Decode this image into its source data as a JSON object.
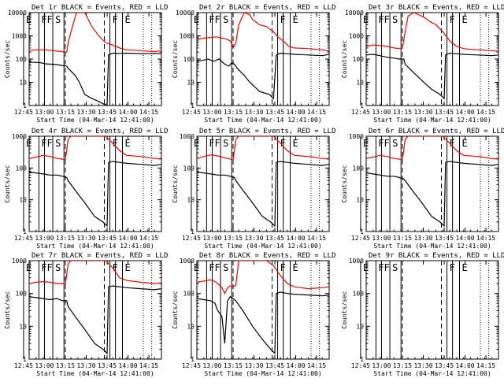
{
  "colors": {
    "events": "#000000",
    "lld": "#ff0000",
    "axes": "#000000",
    "background": "#ffffff"
  },
  "x_labels": [
    "12:45",
    "13:00",
    "13:15",
    "13:30",
    "13:45",
    "14:00",
    "14:15"
  ],
  "x_minutes": [
    -4,
    11,
    26,
    41,
    56,
    71,
    86,
    95
  ],
  "xlabel": "Start Time (04-Mar-14 12:41:00)",
  "ylabel": "Counts/sec",
  "y_tick_labels_small": [
    "1",
    "10",
    "100",
    "1000"
  ],
  "y_tick_labels_big": [
    "1",
    "10",
    "100",
    "1000",
    "10000"
  ],
  "attenuator_letters": [
    "E",
    "F",
    "F",
    "S",
    "F",
    "E"
  ],
  "chart_data": [
    {
      "type": "line",
      "title": "Det 1r BLACK = Events, RED = LLD",
      "xlim": [
        0,
        95
      ],
      "ylim": [
        1,
        10000
      ],
      "yscale": "log",
      "series": [
        {
          "name": "Events",
          "color": "#000000",
          "x": [
            0,
            4,
            8,
            12,
            16,
            20,
            24,
            27,
            28,
            33,
            36,
            40,
            45,
            50,
            53,
            56,
            57,
            60,
            65,
            70,
            80,
            90,
            95
          ],
          "y": [
            75,
            72,
            70,
            62,
            60,
            58,
            52,
            50,
            40,
            20,
            10,
            3,
            2,
            1.5,
            1.2,
            1,
            150,
            180,
            175,
            180,
            170,
            175,
            170
          ]
        },
        {
          "name": "LLD",
          "color": "#ff0000",
          "x": [
            0,
            5,
            10,
            15,
            20,
            23,
            25,
            27,
            28,
            30,
            34,
            40,
            45,
            50,
            55,
            60,
            65,
            70,
            80,
            90,
            95
          ],
          "y": [
            230,
            250,
            250,
            240,
            220,
            210,
            200,
            200,
            500,
            1500,
            10000,
            10000,
            2500,
            1000,
            500,
            400,
            300,
            250,
            230,
            210,
            230
          ]
        }
      ]
    },
    {
      "type": "line",
      "title": "Det 2r BLACK = Events, RED = LLD",
      "xlim": [
        0,
        95
      ],
      "ylim": [
        1,
        10000
      ],
      "yscale": "log",
      "series": [
        {
          "name": "Events",
          "color": "#000000",
          "x": [
            0,
            5,
            8,
            12,
            16,
            20,
            23,
            25,
            27,
            29,
            31,
            34,
            38,
            42,
            45,
            52,
            55,
            57,
            60,
            65,
            70,
            80,
            90,
            95
          ],
          "y": [
            80,
            90,
            100,
            80,
            100,
            60,
            50,
            70,
            60,
            40,
            30,
            20,
            10,
            6,
            4,
            3,
            2,
            150,
            180,
            170,
            160,
            150,
            140,
            160
          ]
        },
        {
          "name": "LLD",
          "color": "#ff0000",
          "x": [
            0,
            5,
            10,
            14,
            18,
            20,
            22,
            24,
            26,
            28,
            30,
            34,
            38,
            40,
            45,
            50,
            55,
            58,
            62,
            66,
            70,
            80,
            90,
            95
          ],
          "y": [
            700,
            800,
            850,
            900,
            800,
            750,
            700,
            600,
            300,
            500,
            3000,
            10000,
            8000,
            5000,
            3000,
            2500,
            1500,
            900,
            600,
            350,
            300,
            280,
            250,
            220
          ]
        }
      ]
    },
    {
      "type": "line",
      "title": "Det 3r BLACK = Events, RED = LLD",
      "xlim": [
        0,
        95
      ],
      "ylim": [
        1,
        10000
      ],
      "yscale": "log",
      "series": [
        {
          "name": "Events",
          "color": "#000000",
          "x": [
            0,
            5,
            10,
            15,
            20,
            24,
            27,
            28,
            33,
            40,
            47,
            53,
            56,
            57,
            60,
            65,
            70,
            80,
            90,
            95
          ],
          "y": [
            150,
            160,
            140,
            120,
            110,
            100,
            100,
            60,
            30,
            12,
            5,
            3,
            2,
            150,
            180,
            170,
            160,
            150,
            140,
            150
          ]
        },
        {
          "name": "LLD",
          "color": "#ff0000",
          "x": [
            0,
            5,
            10,
            15,
            20,
            24,
            26,
            28,
            30,
            34,
            38,
            42,
            46,
            50,
            55,
            60,
            65,
            70,
            80,
            90,
            95
          ],
          "y": [
            350,
            400,
            380,
            350,
            300,
            280,
            300,
            1500,
            7000,
            10000,
            8000,
            6000,
            4000,
            3000,
            1500,
            600,
            350,
            280,
            250,
            230,
            220
          ]
        }
      ]
    },
    {
      "type": "line",
      "title": "Det 4r BLACK = Events, RED = LLD",
      "xlim": [
        0,
        95
      ],
      "ylim": [
        1,
        10000
      ],
      "yscale": "log",
      "series": [
        {
          "name": "Events",
          "color": "#000000",
          "x": [
            0,
            5,
            10,
            15,
            20,
            24,
            27,
            28,
            33,
            40,
            47,
            53,
            56,
            57,
            60,
            65,
            70,
            80,
            90,
            95
          ],
          "y": [
            75,
            70,
            65,
            60,
            60,
            55,
            50,
            40,
            20,
            8,
            3,
            2,
            1.5,
            150,
            160,
            150,
            140,
            130,
            120,
            130
          ]
        },
        {
          "name": "LLD",
          "color": "#ff0000",
          "x": [
            0,
            5,
            10,
            15,
            20,
            24,
            26,
            28,
            30,
            34,
            38,
            42,
            46,
            50,
            55,
            60,
            65,
            70,
            80,
            90,
            95
          ],
          "y": [
            200,
            220,
            250,
            230,
            200,
            190,
            180,
            800,
            5000,
            10000,
            9000,
            7000,
            5000,
            3000,
            1500,
            600,
            350,
            250,
            230,
            200,
            190
          ]
        }
      ]
    },
    {
      "type": "line",
      "title": "Det 5r BLACK = Events, RED = LLD",
      "xlim": [
        0,
        95
      ],
      "ylim": [
        1,
        10000
      ],
      "yscale": "log",
      "series": [
        {
          "name": "Events",
          "color": "#000000",
          "x": [
            0,
            5,
            10,
            15,
            20,
            24,
            27,
            28,
            33,
            40,
            47,
            53,
            56,
            57,
            60,
            65,
            70,
            80,
            90,
            95
          ],
          "y": [
            75,
            70,
            65,
            60,
            60,
            55,
            50,
            40,
            20,
            8,
            3,
            2,
            1.5,
            150,
            160,
            150,
            140,
            130,
            120,
            130
          ]
        },
        {
          "name": "LLD",
          "color": "#ff0000",
          "x": [
            0,
            5,
            10,
            15,
            20,
            24,
            26,
            28,
            30,
            34,
            38,
            42,
            46,
            50,
            55,
            60,
            65,
            70,
            80,
            90,
            95
          ],
          "y": [
            200,
            230,
            260,
            240,
            210,
            190,
            180,
            800,
            5000,
            10000,
            9000,
            7000,
            5000,
            3000,
            1500,
            600,
            350,
            250,
            230,
            200,
            190
          ]
        }
      ]
    },
    {
      "type": "line",
      "title": "Det 6r BLACK = Events, RED = LLD",
      "xlim": [
        0,
        95
      ],
      "ylim": [
        1,
        10000
      ],
      "yscale": "log",
      "series": [
        {
          "name": "Events",
          "color": "#000000",
          "x": [
            0,
            5,
            10,
            15,
            20,
            24,
            27,
            28,
            33,
            40,
            47,
            53,
            56,
            57,
            60,
            65,
            70,
            80,
            90,
            95
          ],
          "y": [
            70,
            65,
            60,
            55,
            55,
            50,
            45,
            40,
            20,
            8,
            3,
            2,
            1.5,
            150,
            160,
            150,
            140,
            130,
            120,
            130
          ]
        },
        {
          "name": "LLD",
          "color": "#ff0000",
          "x": [
            0,
            5,
            10,
            15,
            20,
            24,
            26,
            28,
            30,
            34,
            38,
            42,
            46,
            50,
            55,
            60,
            65,
            70,
            80,
            90,
            95
          ],
          "y": [
            200,
            220,
            250,
            230,
            200,
            190,
            180,
            800,
            5000,
            10000,
            9000,
            7000,
            5000,
            3000,
            1500,
            600,
            350,
            250,
            230,
            200,
            190
          ]
        }
      ]
    },
    {
      "type": "line",
      "title": "Det 7r BLACK = Events, RED = LLD",
      "xlim": [
        0,
        95
      ],
      "ylim": [
        1,
        10000
      ],
      "yscale": "log",
      "series": [
        {
          "name": "Events",
          "color": "#000000",
          "x": [
            0,
            5,
            10,
            15,
            20,
            24,
            27,
            28,
            33,
            40,
            47,
            53,
            56,
            57,
            60,
            65,
            70,
            80,
            90,
            95
          ],
          "y": [
            80,
            75,
            70,
            65,
            70,
            60,
            60,
            40,
            20,
            8,
            3,
            2,
            1.5,
            160,
            170,
            160,
            150,
            140,
            130,
            140
          ]
        },
        {
          "name": "LLD",
          "color": "#ff0000",
          "x": [
            0,
            5,
            10,
            15,
            20,
            24,
            26,
            28,
            30,
            34,
            38,
            42,
            46,
            50,
            55,
            60,
            65,
            70,
            80,
            90,
            95
          ],
          "y": [
            200,
            220,
            230,
            220,
            200,
            200,
            190,
            800,
            5000,
            10000,
            9000,
            7000,
            5000,
            3000,
            1500,
            600,
            300,
            250,
            220,
            200,
            210
          ]
        }
      ]
    },
    {
      "type": "line",
      "title": "Det 8r BLACK = Events, RED = LLD",
      "xlim": [
        0,
        95
      ],
      "ylim": [
        1,
        10000
      ],
      "yscale": "log",
      "series": [
        {
          "name": "Events",
          "color": "#000000",
          "x": [
            0,
            5,
            10,
            13,
            15,
            18,
            20,
            22,
            24,
            26,
            28,
            33,
            40,
            47,
            53,
            56,
            57,
            60,
            65,
            70,
            80,
            90,
            95
          ],
          "y": [
            70,
            65,
            60,
            50,
            30,
            20,
            3,
            60,
            80,
            70,
            60,
            30,
            10,
            4,
            2,
            1.5,
            100,
            110,
            100,
            95,
            90,
            85,
            90
          ]
        },
        {
          "name": "LLD",
          "color": "#ff0000",
          "x": [
            0,
            5,
            10,
            13,
            15,
            18,
            20,
            22,
            24,
            26,
            28,
            30,
            34,
            38,
            42,
            46,
            50,
            55,
            60,
            65,
            70,
            80,
            90,
            95
          ],
          "y": [
            220,
            240,
            260,
            230,
            200,
            150,
            100,
            150,
            170,
            160,
            180,
            1500,
            8000,
            10000,
            8000,
            5000,
            2000,
            700,
            350,
            200,
            160,
            140,
            150,
            160
          ]
        }
      ]
    },
    {
      "type": "line",
      "title": "Det 9r BLACK = Events, RED = LLD",
      "xlim": [
        0,
        95
      ],
      "ylim": [
        1,
        10000
      ],
      "yscale": "log",
      "series": []
    }
  ]
}
